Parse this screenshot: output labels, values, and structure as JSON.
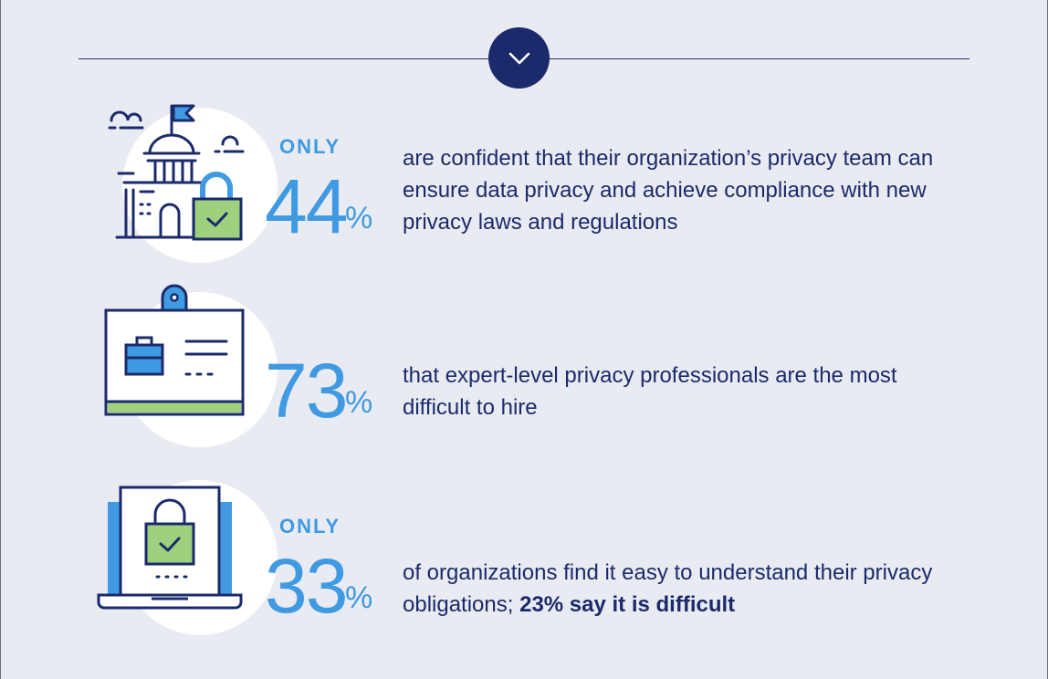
{
  "toggle": {
    "icon": "chevron-down-icon"
  },
  "colors": {
    "navy": "#1b2a6b",
    "blue": "#3f9ae2",
    "green": "#9ed07e",
    "background": "#e9ebf2"
  },
  "stats": [
    {
      "prefix": "ONLY",
      "number": "44",
      "unit": "%",
      "text": "are confident that their organization’s privacy team can ensure data privacy and achieve compliance with new privacy laws and regulations",
      "icon": "government-building-lock-icon"
    },
    {
      "prefix": "",
      "number": "73",
      "unit": "%",
      "text": "that expert-level privacy professionals are the most difficult to hire",
      "icon": "id-badge-briefcase-icon"
    },
    {
      "prefix": "ONLY",
      "number": "33",
      "unit": "%",
      "text": "of organizations find it easy to understand their privacy obligations; ",
      "bold_text": "23% say it is difficult",
      "icon": "laptop-lock-icon"
    }
  ]
}
